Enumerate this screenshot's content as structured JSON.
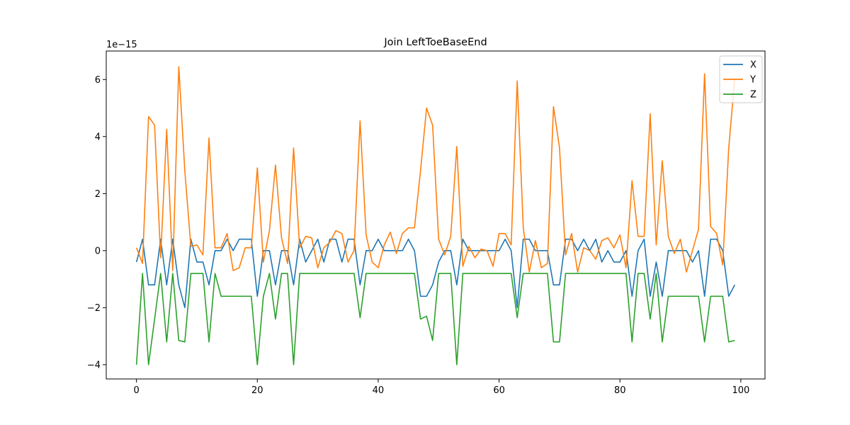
{
  "chart_data": {
    "type": "line",
    "title": "Join LeftToeBaseEnd",
    "xlabel": "",
    "ylabel": "",
    "y_scale_label": "1e−15",
    "xlim": [
      -5,
      104
    ],
    "ylim": [
      -4.5,
      7.0
    ],
    "x_ticks": [
      0,
      20,
      40,
      60,
      80,
      100
    ],
    "y_ticks": [
      -4,
      -2,
      0,
      2,
      4,
      6
    ],
    "grid": false,
    "legend_position": "top-right",
    "x": [
      0,
      1,
      2,
      3,
      4,
      5,
      6,
      7,
      8,
      9,
      10,
      11,
      12,
      13,
      14,
      15,
      16,
      17,
      18,
      19,
      20,
      21,
      22,
      23,
      24,
      25,
      26,
      27,
      28,
      29,
      30,
      31,
      32,
      33,
      34,
      35,
      36,
      37,
      38,
      39,
      40,
      41,
      42,
      43,
      44,
      45,
      46,
      47,
      48,
      49,
      50,
      51,
      52,
      53,
      54,
      55,
      56,
      57,
      58,
      59,
      60,
      61,
      62,
      63,
      64,
      65,
      66,
      67,
      68,
      69,
      70,
      71,
      72,
      73,
      74,
      75,
      76,
      77,
      78,
      79,
      80,
      81,
      82,
      83,
      84,
      85,
      86,
      87,
      88,
      89,
      90,
      91,
      92,
      93,
      94,
      95,
      96,
      97,
      98,
      99
    ],
    "series": [
      {
        "name": "X",
        "color": "#1f77b4",
        "values": [
          -0.4,
          0.4,
          -1.2,
          -1.2,
          0.4,
          -1.2,
          0.4,
          -1.2,
          -2.0,
          0.4,
          -0.4,
          -0.4,
          -1.2,
          0.0,
          0.0,
          0.4,
          0.0,
          0.4,
          0.4,
          0.4,
          -1.6,
          0.0,
          0.0,
          -1.2,
          0.0,
          0.0,
          -1.2,
          0.4,
          -0.4,
          0.0,
          0.4,
          -0.4,
          0.4,
          0.4,
          -0.4,
          0.4,
          0.4,
          -1.2,
          0.0,
          0.0,
          0.4,
          0.0,
          0.0,
          0.0,
          0.0,
          0.4,
          0.0,
          -1.6,
          -1.6,
          -1.2,
          -0.4,
          0.0,
          0.0,
          -1.2,
          0.4,
          0.0,
          0.0,
          0.0,
          0.0,
          0.0,
          0.0,
          0.4,
          0.0,
          -2.0,
          0.4,
          0.4,
          0.0,
          0.0,
          0.0,
          -1.2,
          -1.2,
          0.4,
          0.4,
          0.0,
          0.4,
          0.0,
          0.4,
          -0.4,
          0.0,
          -0.4,
          -0.4,
          0.0,
          -1.6,
          0.0,
          0.4,
          -1.6,
          -0.4,
          -1.6,
          0.0,
          0.0,
          0.0,
          0.0,
          -0.4,
          0.0,
          -1.6,
          0.4,
          0.4,
          0.0,
          -1.6,
          -1.2
        ]
      },
      {
        "name": "Y",
        "color": "#ff7f0e",
        "values": [
          0.1,
          -0.45,
          4.7,
          4.4,
          -0.25,
          4.25,
          -0.7,
          6.45,
          2.8,
          0.15,
          0.2,
          -0.15,
          3.95,
          0.1,
          0.1,
          0.6,
          -0.7,
          -0.6,
          0.1,
          0.1,
          2.9,
          -0.4,
          0.7,
          3.0,
          0.45,
          -0.45,
          3.6,
          0.1,
          0.5,
          0.45,
          -0.6,
          0.1,
          0.3,
          0.7,
          0.6,
          -0.4,
          0.0,
          4.55,
          0.55,
          -0.4,
          -0.6,
          0.2,
          0.65,
          -0.1,
          0.6,
          0.8,
          0.8,
          2.8,
          5.0,
          4.4,
          0.4,
          -0.15,
          0.5,
          3.65,
          -0.55,
          0.15,
          -0.25,
          0.05,
          0.0,
          -0.55,
          0.6,
          0.6,
          0.2,
          5.95,
          0.8,
          -0.75,
          0.35,
          -0.6,
          -0.45,
          5.05,
          3.6,
          -0.15,
          0.6,
          -0.75,
          0.1,
          0.0,
          -0.3,
          0.35,
          0.45,
          0.1,
          0.55,
          -0.6,
          2.45,
          0.5,
          0.5,
          4.8,
          0.2,
          3.15,
          0.5,
          -0.1,
          0.4,
          -0.75,
          0.0,
          0.75,
          6.2,
          0.85,
          0.6,
          -0.5,
          3.6,
          6.05
        ]
      },
      {
        "name": "Z",
        "color": "#2ca02c",
        "values": [
          -4.0,
          -0.8,
          -4.0,
          -2.4,
          -0.8,
          -3.2,
          -0.8,
          -3.15,
          -3.2,
          -0.8,
          -0.8,
          -0.8,
          -3.2,
          -0.8,
          -1.6,
          -1.6,
          -1.6,
          -1.6,
          -1.6,
          -1.6,
          -4.0,
          -1.6,
          -0.8,
          -2.4,
          -0.8,
          -0.8,
          -4.0,
          -0.8,
          -0.8,
          -0.8,
          -0.8,
          -0.8,
          -0.8,
          -0.8,
          -0.8,
          -0.8,
          -0.8,
          -2.35,
          -0.8,
          -0.8,
          -0.8,
          -0.8,
          -0.8,
          -0.8,
          -0.8,
          -0.8,
          -0.8,
          -2.4,
          -2.3,
          -3.15,
          -0.8,
          -0.8,
          -0.8,
          -4.0,
          -0.8,
          -0.8,
          -0.8,
          -0.8,
          -0.8,
          -0.8,
          -0.8,
          -0.8,
          -0.8,
          -2.35,
          -0.8,
          -0.8,
          -0.8,
          -0.8,
          -0.8,
          -3.2,
          -3.2,
          -0.8,
          -0.8,
          -0.8,
          -0.8,
          -0.8,
          -0.8,
          -0.8,
          -0.8,
          -0.8,
          -0.8,
          -0.8,
          -3.2,
          -0.8,
          -0.8,
          -2.4,
          -0.8,
          -3.2,
          -1.6,
          -1.6,
          -1.6,
          -1.6,
          -1.6,
          -1.6,
          -3.2,
          -1.6,
          -1.6,
          -1.6,
          -3.2,
          -3.15
        ]
      }
    ]
  }
}
